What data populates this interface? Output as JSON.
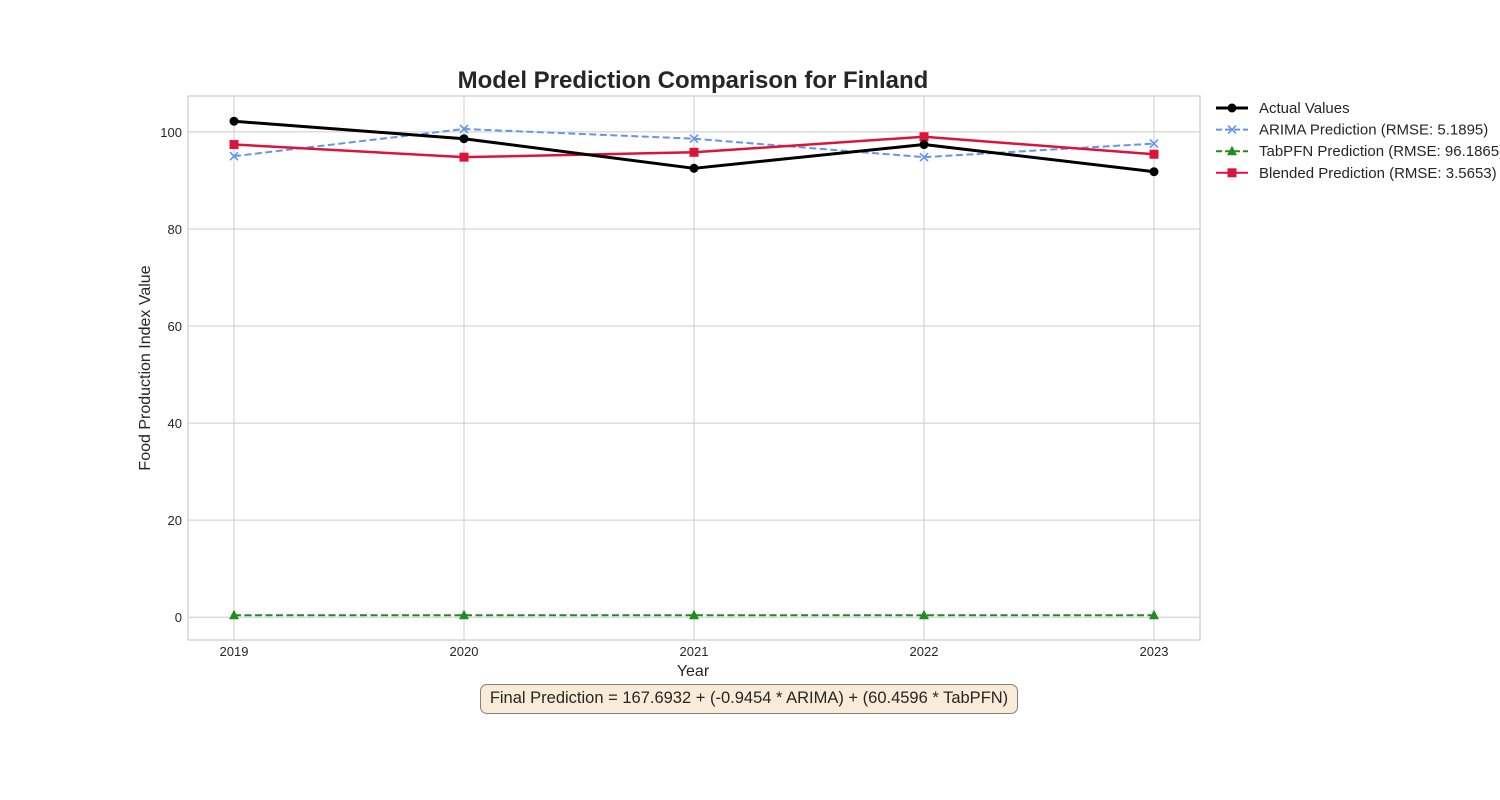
{
  "chart_data": {
    "type": "line",
    "title": "Model Prediction Comparison for Finland",
    "xlabel": "Year",
    "ylabel": "Food Production Index Value",
    "categories": [
      "2019",
      "2020",
      "2021",
      "2022",
      "2023"
    ],
    "yticks": [
      "0",
      "20",
      "40",
      "60",
      "80",
      "100"
    ],
    "ylim": [
      -4.7,
      107.4
    ],
    "grid": true,
    "legend_position": "outside-top-right",
    "series": [
      {
        "name": "Actual Values",
        "values": [
          102.2,
          98.6,
          92.5,
          97.4,
          91.8
        ],
        "color": "#000000",
        "marker": "circle",
        "dash": "solid"
      },
      {
        "name": "ARIMA Prediction (RMSE: 5.1895)",
        "values": [
          95.0,
          100.6,
          98.6,
          94.8,
          97.6
        ],
        "color": "#6495ed",
        "marker": "x",
        "dash": "dashed"
      },
      {
        "name": "TabPFN Prediction (RMSE: 96.1865)",
        "values": [
          0.4,
          0.4,
          0.4,
          0.4,
          0.4
        ],
        "color": "#228b22",
        "marker": "triangle",
        "dash": "dashed"
      },
      {
        "name": "Blended Prediction (RMSE: 3.5653)",
        "values": [
          97.4,
          94.8,
          95.8,
          99.0,
          95.4
        ],
        "color": "#dc143c",
        "marker": "square",
        "dash": "solid"
      }
    ]
  },
  "annotation": "Final Prediction = 167.6932 + (-0.9454 * ARIMA) + (60.4596 * TabPFN)"
}
